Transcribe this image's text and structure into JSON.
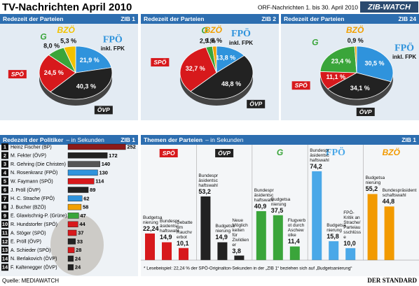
{
  "header": {
    "title": "TV-Nachrichten April 2010",
    "subtitle": "ORF-Nachrichten 1. bis 30. April 2010",
    "badge": "ZIB-WATCH"
  },
  "chart_data": [
    {
      "type": "pie",
      "title": "Redezeit der Parteien",
      "tag": "ZIB 1",
      "fpk_note": "inkl. FPK",
      "categories": [
        "FPÖ",
        "ÖVP",
        "SPÖ",
        "G",
        "BZÖ"
      ],
      "values": [
        21.9,
        40.3,
        24.5,
        8.0,
        5.3
      ],
      "value_labels": [
        "21,9 %",
        "40,3 %",
        "24,5 %",
        "8,0 %",
        "5,3 %"
      ],
      "colors": [
        "#2f93dc",
        "#222222",
        "#d7191c",
        "#3aa53a",
        "#f2c200"
      ]
    },
    {
      "type": "pie",
      "title": "Redezeit der Parteien",
      "tag": "ZIB 2",
      "fpk_note": "inkl. FPK",
      "categories": [
        "FPÖ",
        "ÖVP",
        "SPÖ",
        "G",
        "BZÖ"
      ],
      "values": [
        13.8,
        48.8,
        32.7,
        2.9,
        1.8
      ],
      "value_labels": [
        "13,8 %",
        "48,8 %",
        "32,7 %",
        "2,9 %",
        "1,8 %"
      ],
      "colors": [
        "#2f93dc",
        "#222222",
        "#d7191c",
        "#3aa53a",
        "#f2a000"
      ]
    },
    {
      "type": "pie",
      "title": "Redezeit der Parteien",
      "tag": "ZIB 24",
      "fpk_note": "inkl. FPK",
      "categories": [
        "FPÖ",
        "ÖVP",
        "SPÖ",
        "G",
        "BZÖ"
      ],
      "values": [
        30.5,
        34.1,
        11.1,
        23.4,
        0.9
      ],
      "value_labels": [
        "30,5 %",
        "34,1 %",
        "11,1 %",
        "23,4 %",
        "0,9 %"
      ],
      "colors": [
        "#2f93dc",
        "#222222",
        "#d7191c",
        "#3aa53a",
        "#f2a000"
      ]
    },
    {
      "type": "hbar",
      "title": "Redezeit der Politiker",
      "subtitle": "– in Sekunden",
      "tag": "ZIB 1",
      "ranks": [
        1,
        2,
        3,
        4,
        5,
        6,
        7,
        8,
        9,
        10,
        11,
        12,
        13,
        14,
        14
      ],
      "categories": [
        "Heinz Fischer (BP)",
        "M. Fekter (ÖVP)",
        "R. Gehring (Die Christen)",
        "N. Rosenkranz (FPÖ)",
        "W. Faymann (SPÖ)",
        "J. Pröll (ÖVP)",
        "H. C. Strache (FPÖ)",
        "J. Bucher (BZÖ)",
        "E. Glawischnig-P. (Grüne)",
        "R. Hundstorfer (SPÖ)",
        "A. Stöger (SPÖ)",
        "E. Pröll (ÖVP)",
        "A. Schieder (SPÖ)",
        "N. Berlakovich (ÖVP)",
        "F. Kaltenegger (ÖVP)"
      ],
      "values": [
        252,
        172,
        140,
        130,
        114,
        89,
        62,
        58,
        47,
        44,
        37,
        33,
        28,
        24,
        24
      ],
      "colors": [
        "#8b1a1a",
        "#222222",
        "#555555",
        "#2f93dc",
        "#d7191c",
        "#222222",
        "#2f93dc",
        "#f2a000",
        "#3aa53a",
        "#d7191c",
        "#d7191c",
        "#222222",
        "#d7191c",
        "#222222",
        "#222222"
      ],
      "xlim": [
        0,
        300
      ]
    },
    {
      "type": "groups",
      "title": "Themen der Parteien",
      "subtitle": "– in Sekunden",
      "tag": "ZIB 1",
      "ylim": [
        0,
        80
      ],
      "groups": [
        {
          "name": "SPÖ",
          "color": "#d7191c",
          "categories": [
            "Budgetsanierung",
            "Bundespräsidentschaftswahl",
            "Debatte um Rauchverbot"
          ],
          "values": [
            22.24,
            14.9,
            10.1
          ],
          "value_labels": [
            "22,24",
            "14,9",
            "10,1"
          ]
        },
        {
          "name": "ÖVP",
          "color": "#222222",
          "categories": [
            "Bundespräsidentschaftswahl",
            "Budgetsanierung",
            "Neue Möglichkeiten für Zivildiener"
          ],
          "values": [
            53.2,
            14.9,
            3.8
          ],
          "value_labels": [
            "53,2",
            "14,9",
            "3,8"
          ]
        },
        {
          "name": "G",
          "color": "#3aa53a",
          "categories": [
            "Bundespräsidentschaftswahl",
            "Budgetsanierung",
            "Flugverbot durch Aschewolke"
          ],
          "values": [
            40.9,
            37.5,
            11.4
          ],
          "value_labels": [
            "40,9",
            "37,5",
            "11,4"
          ]
        },
        {
          "name": "FPÖ",
          "color": "#4aa8e8",
          "categories": [
            "Bundespräsidentschaftswahl",
            "Budgetsanierung",
            "FPÖ-Kritik an Strache/Parteiausschlüsse"
          ],
          "values": [
            74.2,
            15.8,
            10.0
          ],
          "value_labels": [
            "74,2",
            "15,8",
            "10,0"
          ]
        },
        {
          "name": "BZÖ",
          "color": "#f29a00",
          "categories": [
            "Budgetsanierung",
            "Bundespräsidentschaftswahl"
          ],
          "values": [
            55.2,
            44.8
          ],
          "value_labels": [
            "55,2",
            "44,8"
          ]
        }
      ],
      "note": "* Lesebeispiel: 22,24 % der SPÖ-Originalton-Sekunden in der „ZIB 1“ beziehen sich auf „Budgetsanierung“"
    }
  ],
  "footer": {
    "source": "Quelle: MEDIAWATCH",
    "brand": "DER STANDARD"
  }
}
